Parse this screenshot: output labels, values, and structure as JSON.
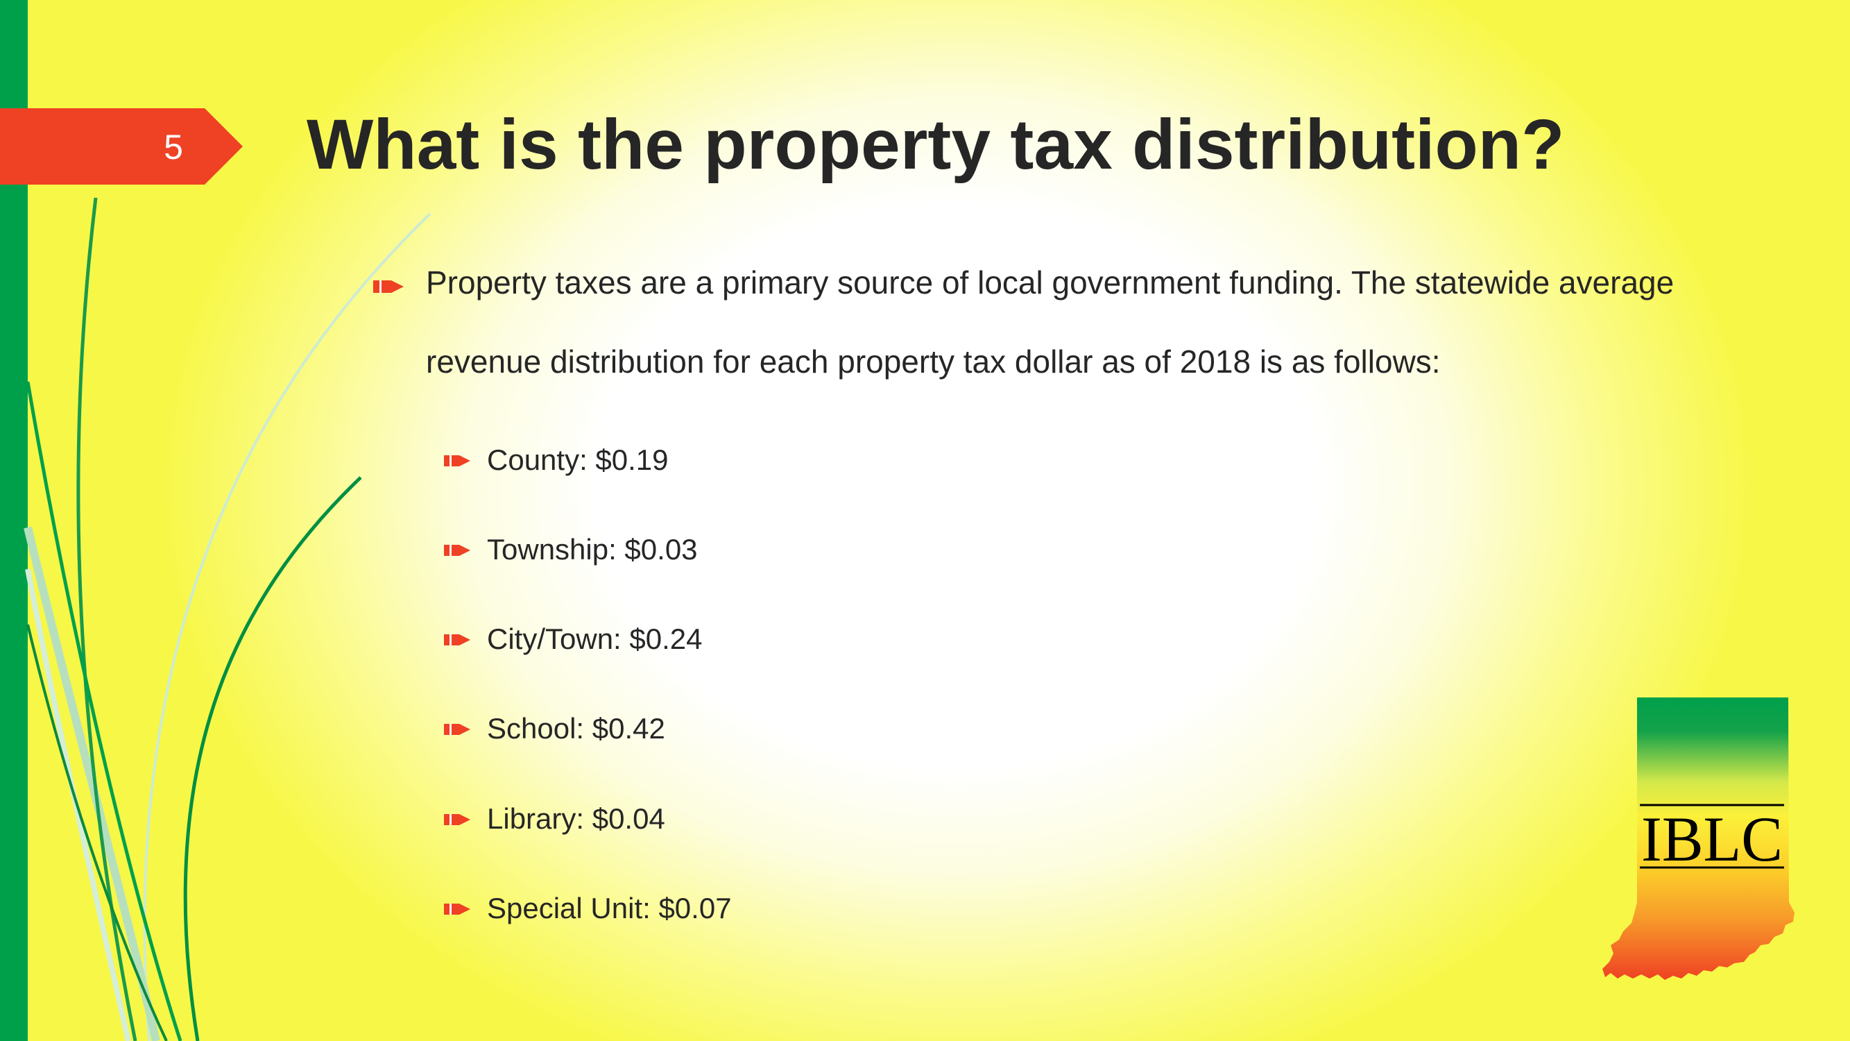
{
  "slide": {
    "number": "5",
    "title": "What is the property tax distribution?"
  },
  "intro": "Property taxes are a primary source of local government funding. The statewide average revenue distribution for each property tax dollar as of 2018 is as follows:",
  "items": [
    {
      "label": "County: $0.19"
    },
    {
      "label": "Township: $0.03"
    },
    {
      "label": "City/Town: $0.24"
    },
    {
      "label": "School: $0.42"
    },
    {
      "label": "Library: $0.04"
    },
    {
      "label": "Special Unit: $0.07"
    }
  ],
  "logo": {
    "text": "IBLC"
  },
  "colors": {
    "accent_red": "#ef4123",
    "accent_green": "#00a04b",
    "title_text": "#262626"
  }
}
